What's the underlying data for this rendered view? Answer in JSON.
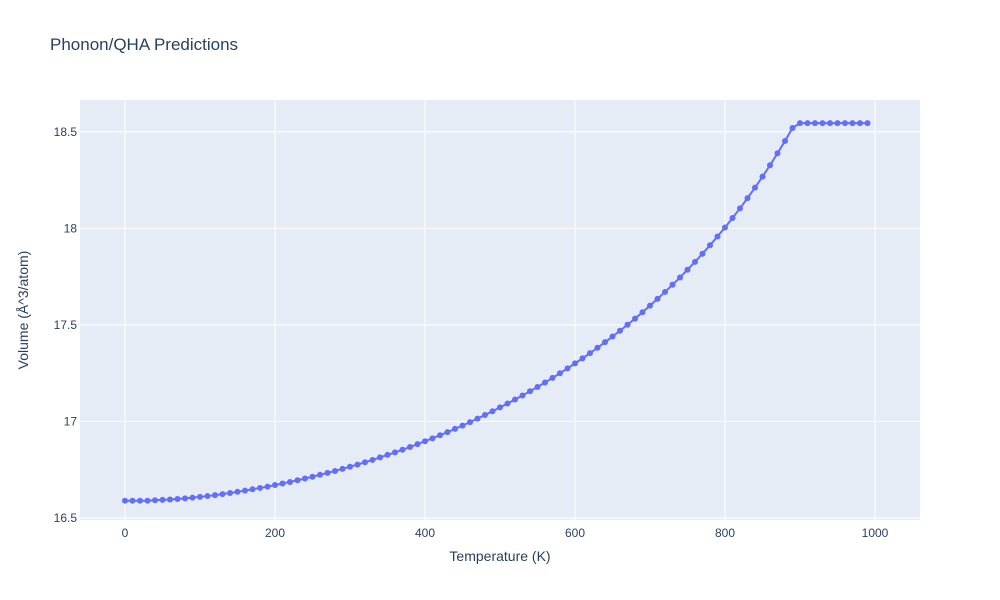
{
  "chart_data": {
    "type": "line",
    "title": "Phonon/QHA Predictions",
    "xlabel": "Temperature (K)",
    "ylabel": "Volume (Å^3/atom)",
    "xlim": [
      -60,
      1060
    ],
    "ylim": [
      16.49,
      18.665
    ],
    "xticks": [
      0,
      200,
      400,
      600,
      800,
      1000
    ],
    "xtick_labels": [
      "0",
      "200",
      "400",
      "600",
      "800",
      "1000"
    ],
    "yticks": [
      16.5,
      17,
      17.5,
      18,
      18.5
    ],
    "ytick_labels": [
      "16.5",
      "17",
      "17.5",
      "18",
      "18.5"
    ],
    "grid": true,
    "legend": "none",
    "colors": {
      "series": "#636efa",
      "plot_bg": "#e5ecf6",
      "grid": "#ffffff",
      "text": "#2a3f5f"
    },
    "series": [
      {
        "mode": "lines+markers",
        "x": [
          0,
          10,
          20,
          30,
          40,
          50,
          60,
          70,
          80,
          90,
          100,
          110,
          120,
          130,
          140,
          150,
          160,
          170,
          180,
          190,
          200,
          210,
          220,
          230,
          240,
          250,
          260,
          270,
          280,
          290,
          300,
          310,
          320,
          330,
          340,
          350,
          360,
          370,
          380,
          390,
          400,
          410,
          420,
          430,
          440,
          450,
          460,
          470,
          480,
          490,
          500,
          510,
          520,
          530,
          540,
          550,
          560,
          570,
          580,
          590,
          600,
          610,
          620,
          630,
          640,
          650,
          660,
          670,
          680,
          690,
          700,
          710,
          720,
          730,
          740,
          750,
          760,
          770,
          780,
          790,
          800,
          810,
          820,
          830,
          840,
          850,
          860,
          870,
          880,
          890,
          900,
          910,
          920,
          930,
          940,
          950,
          960,
          970,
          980,
          990
        ],
        "y": [
          16.59,
          16.59,
          16.59,
          16.59,
          16.592,
          16.594,
          16.596,
          16.599,
          16.602,
          16.606,
          16.61,
          16.614,
          16.619,
          16.624,
          16.63,
          16.636,
          16.642,
          16.649,
          16.656,
          16.663,
          16.671,
          16.679,
          16.687,
          16.696,
          16.705,
          16.714,
          16.724,
          16.734,
          16.744,
          16.755,
          16.766,
          16.777,
          16.789,
          16.801,
          16.814,
          16.827,
          16.84,
          16.854,
          16.868,
          16.883,
          16.898,
          16.913,
          16.929,
          16.945,
          16.962,
          16.979,
          16.997,
          17.015,
          17.034,
          17.053,
          17.073,
          17.093,
          17.114,
          17.135,
          17.157,
          17.179,
          17.202,
          17.226,
          17.25,
          17.275,
          17.301,
          17.327,
          17.354,
          17.382,
          17.411,
          17.44,
          17.47,
          17.501,
          17.533,
          17.566,
          17.6,
          17.635,
          17.671,
          17.708,
          17.746,
          17.786,
          17.827,
          17.869,
          17.913,
          17.958,
          18.005,
          18.054,
          18.104,
          18.157,
          18.211,
          18.268,
          18.327,
          18.389,
          18.453,
          18.52,
          18.545,
          18.545,
          18.545,
          18.545,
          18.545,
          18.545,
          18.545,
          18.545,
          18.545,
          18.545
        ]
      }
    ]
  }
}
